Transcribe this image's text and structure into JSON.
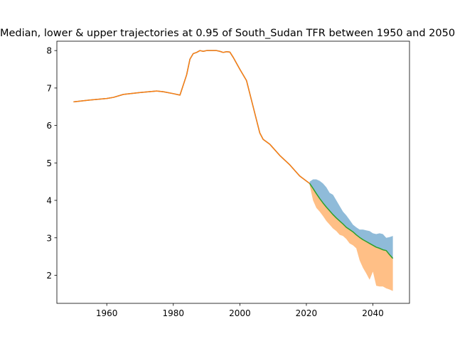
{
  "chart_data": {
    "type": "line",
    "title": "Median, lower & upper trajectories at 0.95 of South_Sudan TFR between 1950 and 2050",
    "xlabel": "",
    "ylabel": "",
    "xlim": [
      1945,
      2051
    ],
    "ylim": [
      1.25,
      8.25
    ],
    "x_ticks": [
      1960,
      1980,
      2000,
      2020,
      2040
    ],
    "y_ticks": [
      2,
      3,
      4,
      5,
      6,
      7,
      8
    ],
    "grid": false,
    "legend": "none",
    "colors": {
      "blue": "#1f77b4",
      "orange": "#ff7f0e",
      "green": "#2ca02c"
    },
    "historical": {
      "x": [
        1950,
        1955,
        1960,
        1962,
        1965,
        1970,
        1975,
        1977,
        1980,
        1982,
        1984,
        1985,
        1986,
        1987,
        1988,
        1989,
        1990,
        1991,
        1992,
        1993,
        1994,
        1995,
        1996,
        1997,
        1998,
        2000,
        2002,
        2004,
        2006,
        2007,
        2009,
        2012,
        2015,
        2018,
        2021
      ],
      "y": [
        6.63,
        6.68,
        6.72,
        6.75,
        6.83,
        6.88,
        6.92,
        6.9,
        6.85,
        6.81,
        7.35,
        7.77,
        7.92,
        7.95,
        8.0,
        7.98,
        8.0,
        8.0,
        8.0,
        8.0,
        7.98,
        7.95,
        7.97,
        7.96,
        7.82,
        7.5,
        7.2,
        6.5,
        5.8,
        5.63,
        5.5,
        5.2,
        4.95,
        4.65,
        4.45
      ]
    },
    "projection": {
      "x": [
        2021,
        2022,
        2023,
        2024,
        2025,
        2026,
        2027,
        2028,
        2029,
        2030,
        2031,
        2032,
        2033,
        2034,
        2035,
        2036,
        2037,
        2038,
        2039,
        2040,
        2041,
        2042,
        2043,
        2044,
        2045,
        2046
      ],
      "median": [
        4.45,
        4.32,
        4.18,
        4.05,
        3.93,
        3.82,
        3.72,
        3.62,
        3.53,
        3.45,
        3.37,
        3.28,
        3.22,
        3.16,
        3.08,
        3.01,
        2.95,
        2.9,
        2.85,
        2.8,
        2.75,
        2.72,
        2.68,
        2.66,
        2.55,
        2.45
      ],
      "upper": [
        4.5,
        4.56,
        4.56,
        4.52,
        4.45,
        4.35,
        4.2,
        4.15,
        4.0,
        3.85,
        3.7,
        3.6,
        3.48,
        3.35,
        3.28,
        3.22,
        3.22,
        3.2,
        3.18,
        3.12,
        3.1,
        3.12,
        3.1,
        3.0,
        3.02,
        3.05
      ],
      "lower": [
        4.4,
        4.0,
        3.8,
        3.7,
        3.58,
        3.45,
        3.35,
        3.25,
        3.18,
        3.08,
        3.05,
        2.97,
        2.85,
        2.8,
        2.72,
        2.4,
        2.2,
        2.05,
        1.88,
        2.1,
        1.72,
        1.7,
        1.7,
        1.65,
        1.62,
        1.58
      ]
    }
  }
}
